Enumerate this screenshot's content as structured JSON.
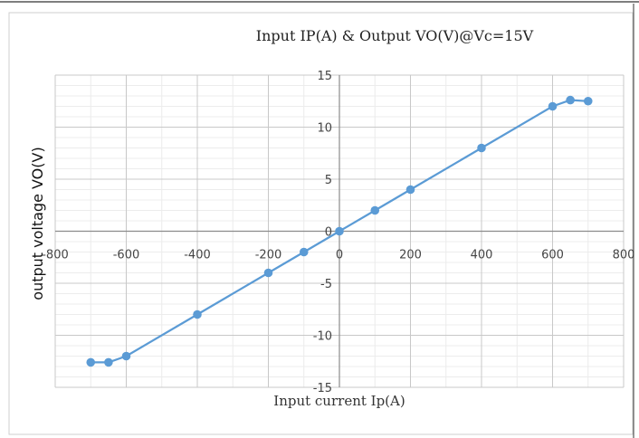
{
  "chart_data": {
    "type": "line",
    "title": "Input IP(A) &  Output VO(V)@Vc=15V",
    "xlabel": "Input current Ip(A)",
    "ylabel": "output voltage VO(V)",
    "xlim": [
      -800,
      800
    ],
    "ylim": [
      -15,
      15
    ],
    "xticks": [
      -800,
      -600,
      -400,
      -200,
      0,
      200,
      400,
      600,
      800
    ],
    "yticks": [
      15,
      10,
      5,
      0,
      -5,
      -10,
      -15
    ],
    "xtick_labels": [
      "-800",
      "-600",
      "-400",
      "-200",
      "0",
      "200",
      "400",
      "600",
      "800"
    ],
    "ytick_labels": [
      "15",
      "10",
      "5",
      "0",
      "-5",
      "-10",
      "-15"
    ],
    "grid": true,
    "series": [
      {
        "color": "#5b9bd5",
        "x": [
          -700,
          -650,
          -600,
          -400,
          -200,
          -100,
          0,
          100,
          200,
          400,
          600,
          650,
          700
        ],
        "y": [
          -12.6,
          -12.6,
          -12.0,
          -8.0,
          -4.0,
          -2.0,
          0.0,
          2.0,
          4.0,
          8.0,
          12.0,
          12.6,
          12.5
        ]
      }
    ]
  }
}
